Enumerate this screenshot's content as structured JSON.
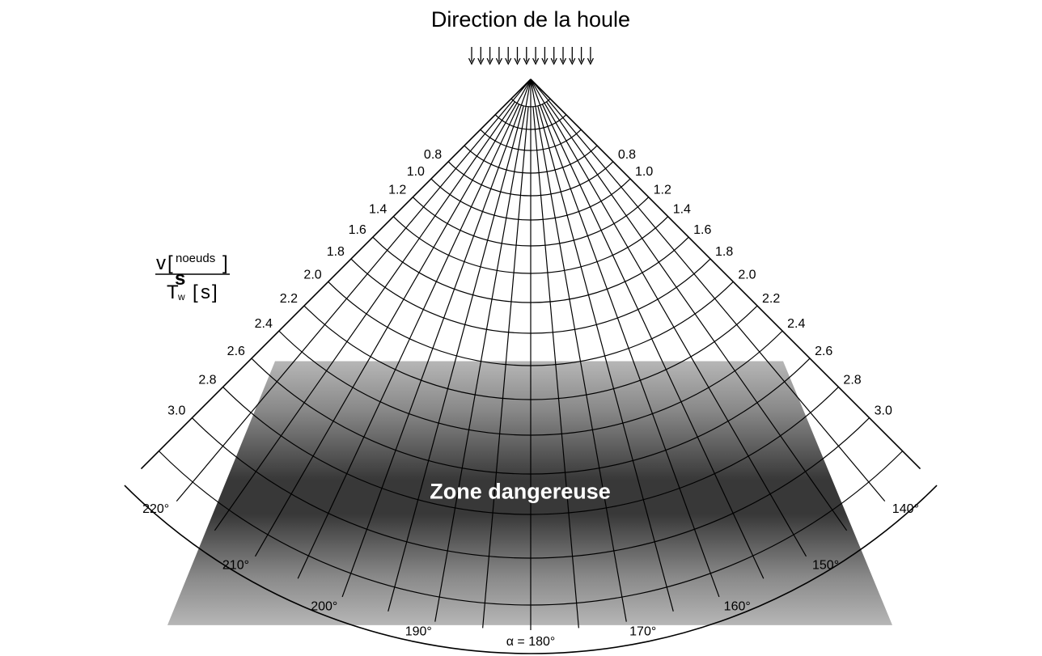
{
  "title": "Direction de la houle",
  "zone_label": "Zone dangereuse",
  "axis": {
    "numerator_symbol": "v",
    "numerator_unit": "noeuds",
    "denominator_symbol": "T",
    "denominator_sub": "w",
    "denominator_unit": "s",
    "stacked_s": "s"
  },
  "chart_data": {
    "type": "polar-sector",
    "ratio_rings": [
      "0.8",
      "1.0",
      "1.2",
      "1.4",
      "1.6",
      "1.8",
      "2.0",
      "2.2",
      "2.4",
      "2.6",
      "2.8",
      "3.0"
    ],
    "angle_labels": [
      {
        "text": "220°",
        "deg": 220
      },
      {
        "text": "210°",
        "deg": 210
      },
      {
        "text": "200°",
        "deg": 200
      },
      {
        "text": "190°",
        "deg": 190
      },
      {
        "text": "α = 180°",
        "deg": 180
      },
      {
        "text": "170°",
        "deg": 170
      },
      {
        "text": "160°",
        "deg": 160
      },
      {
        "text": "150°",
        "deg": 150
      },
      {
        "text": "140°",
        "deg": 140
      }
    ],
    "angle_range_deg": [
      135,
      225
    ],
    "spoke_step_deg": 5,
    "zone": {
      "ratio_from": "2.0",
      "ratio_to": "3.0"
    }
  },
  "colors": {
    "grid": "#000000",
    "zone_dark": "#383838",
    "zone_light": "#b4b4b4",
    "zone_text": "#ffffff"
  }
}
